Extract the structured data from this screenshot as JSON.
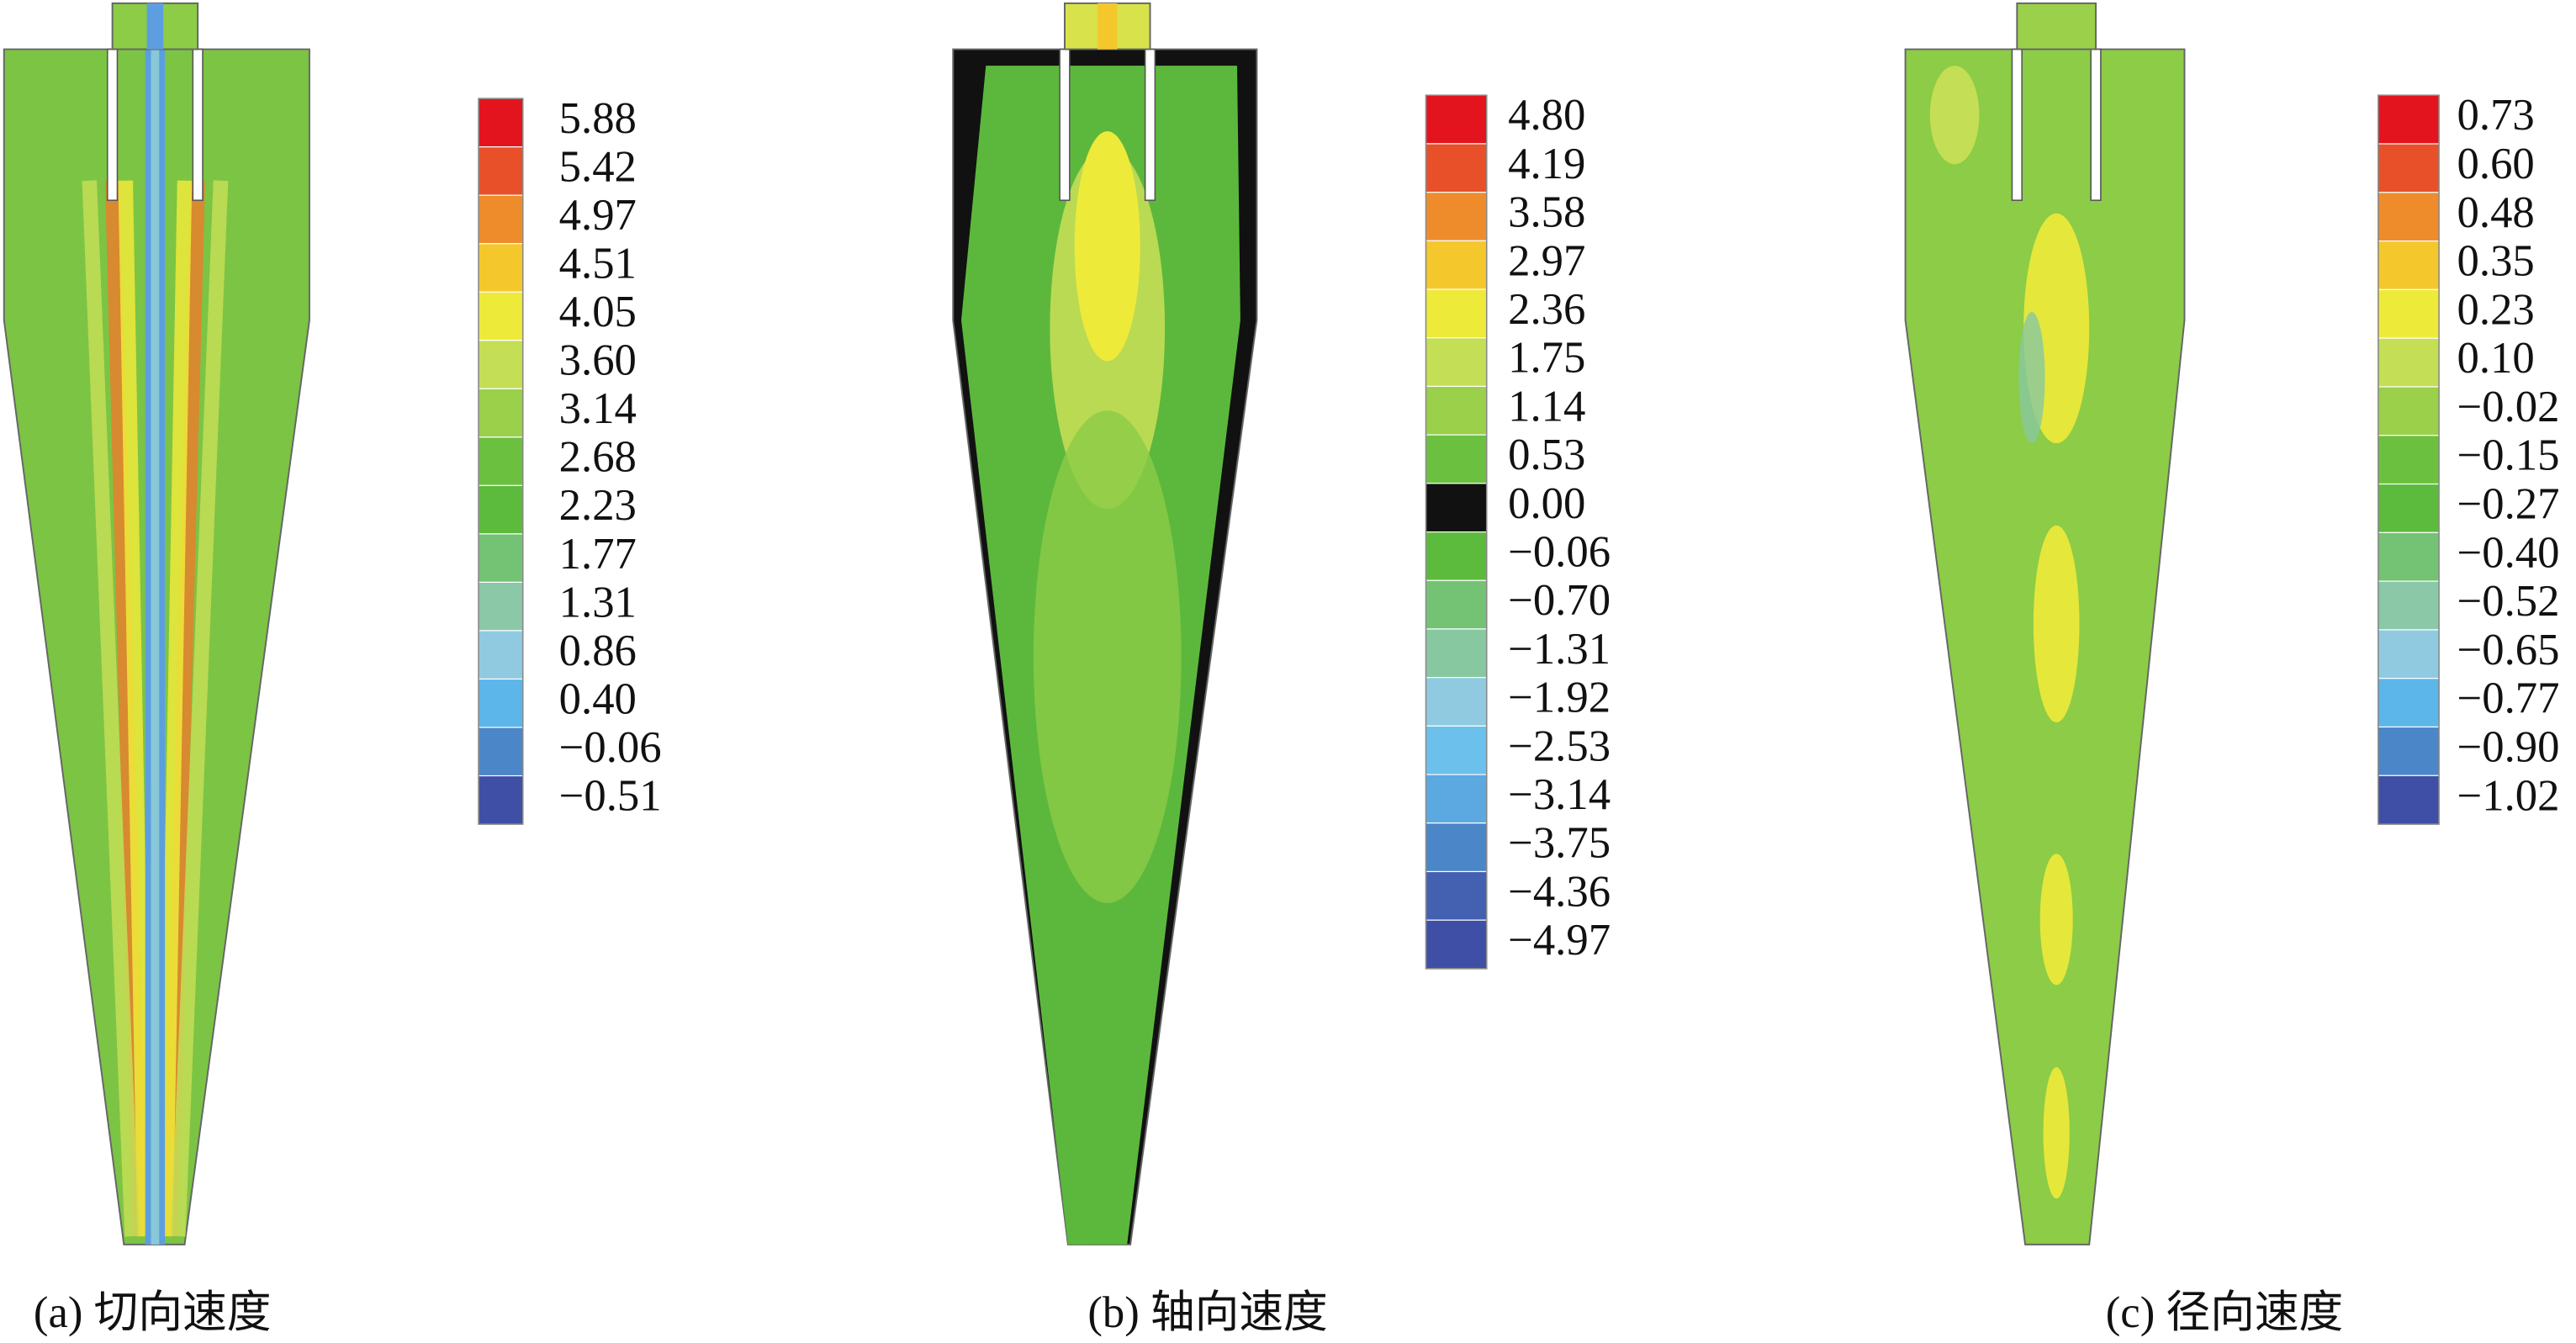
{
  "panels": [
    {
      "caption": "(a) 切向速度",
      "colorbar": [
        "5.88",
        "5.42",
        "4.97",
        "4.51",
        "4.05",
        "3.60",
        "3.14",
        "2.68",
        "2.23",
        "1.77",
        "1.31",
        "0.86",
        "0.40",
        "−0.06",
        "−0.51"
      ]
    },
    {
      "caption": "(b) 轴向速度",
      "colorbar": [
        "4.80",
        "4.19",
        "3.58",
        "2.97",
        "2.36",
        "1.75",
        "1.14",
        "0.53",
        "0.00",
        "−0.06",
        "−0.70",
        "−1.31",
        "−1.92",
        "−2.53",
        "−3.14",
        "−3.75",
        "−4.36",
        "−4.97"
      ]
    },
    {
      "caption": "(c) 径向速度",
      "colorbar": [
        "0.73",
        "0.60",
        "0.48",
        "0.35",
        "0.23",
        "0.10",
        "−0.02",
        "−0.15",
        "−0.27",
        "−0.40",
        "−0.52",
        "−0.65",
        "−0.77",
        "−0.90",
        "−1.02"
      ]
    }
  ]
}
